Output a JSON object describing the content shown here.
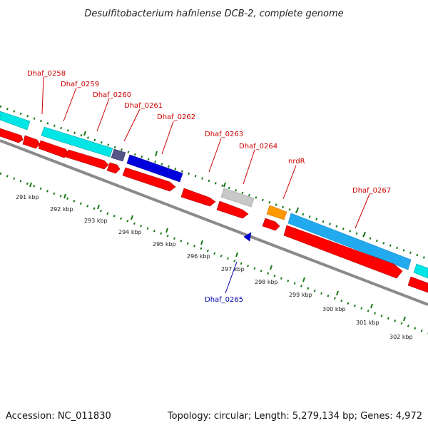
{
  "title": "Desulfitobacterium hafniense DCB-2, complete genome",
  "footer": {
    "accession": "Accession: NC_011830",
    "topology": "Topology: circular; Length: 5,279,134 bp; Genes: 4,972"
  },
  "colors": {
    "label_default": "#cc0000",
    "label_reverse": "#0000aa",
    "backbone": "#888888",
    "tick": "#1a7a1a",
    "cds_forward": "#ff0000",
    "cyan": "#00e5e5",
    "blue": "#0000dd",
    "purple": "#55558a",
    "gray": "#c8c8c8",
    "orange": "#ff9900",
    "lightblue": "#22aaee"
  },
  "gene_labels": [
    {
      "text": "Dhaf_0258",
      "color": "#cc0000"
    },
    {
      "text": "Dhaf_0259",
      "color": "#cc0000"
    },
    {
      "text": "Dhaf_0260",
      "color": "#cc0000"
    },
    {
      "text": "Dhaf_0261",
      "color": "#cc0000"
    },
    {
      "text": "Dhaf_0262",
      "color": "#cc0000"
    },
    {
      "text": "Dhaf_0263",
      "color": "#cc0000"
    },
    {
      "text": "Dhaf_0264",
      "color": "#cc0000"
    },
    {
      "text": "nrdR",
      "color": "#cc0000"
    },
    {
      "text": "Dhaf_0267",
      "color": "#cc0000"
    },
    {
      "text": "Dhaf_0265",
      "color": "#0000aa"
    }
  ],
  "scale_labels": [
    "291 kbp",
    "292 kbp",
    "293 kbp",
    "294 kbp",
    "295 kbp",
    "296 kbp",
    "297 kbp",
    "298 kbp",
    "299 kbp",
    "300 kbp",
    "301 kbp",
    "302 kbp"
  ]
}
